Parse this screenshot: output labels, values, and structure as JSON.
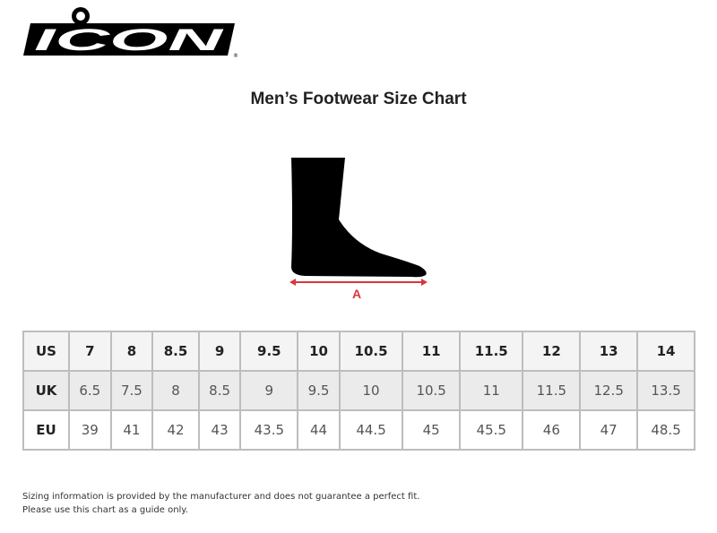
{
  "logo": {
    "text": "ICON",
    "registered": "®"
  },
  "title": "Men’s Footwear Size Chart",
  "diagram": {
    "measure_label": "A",
    "accent": "#d9363e"
  },
  "table": {
    "rows": [
      {
        "label": "US",
        "values": [
          "7",
          "8",
          "8.5",
          "9",
          "9.5",
          "10",
          "10.5",
          "11",
          "11.5",
          "12",
          "13",
          "14"
        ]
      },
      {
        "label": "UK",
        "values": [
          "6.5",
          "7.5",
          "8",
          "8.5",
          "9",
          "9.5",
          "10",
          "10.5",
          "11",
          "11.5",
          "12.5",
          "13.5"
        ]
      },
      {
        "label": "EU",
        "values": [
          "39",
          "41",
          "42",
          "43",
          "43.5",
          "44",
          "44.5",
          "45",
          "45.5",
          "46",
          "47",
          "48.5"
        ]
      }
    ]
  },
  "note": {
    "line1": "Sizing information is provided by the manufacturer and does not guarantee a perfect fit.",
    "line2": "Please use this chart as a guide only."
  }
}
